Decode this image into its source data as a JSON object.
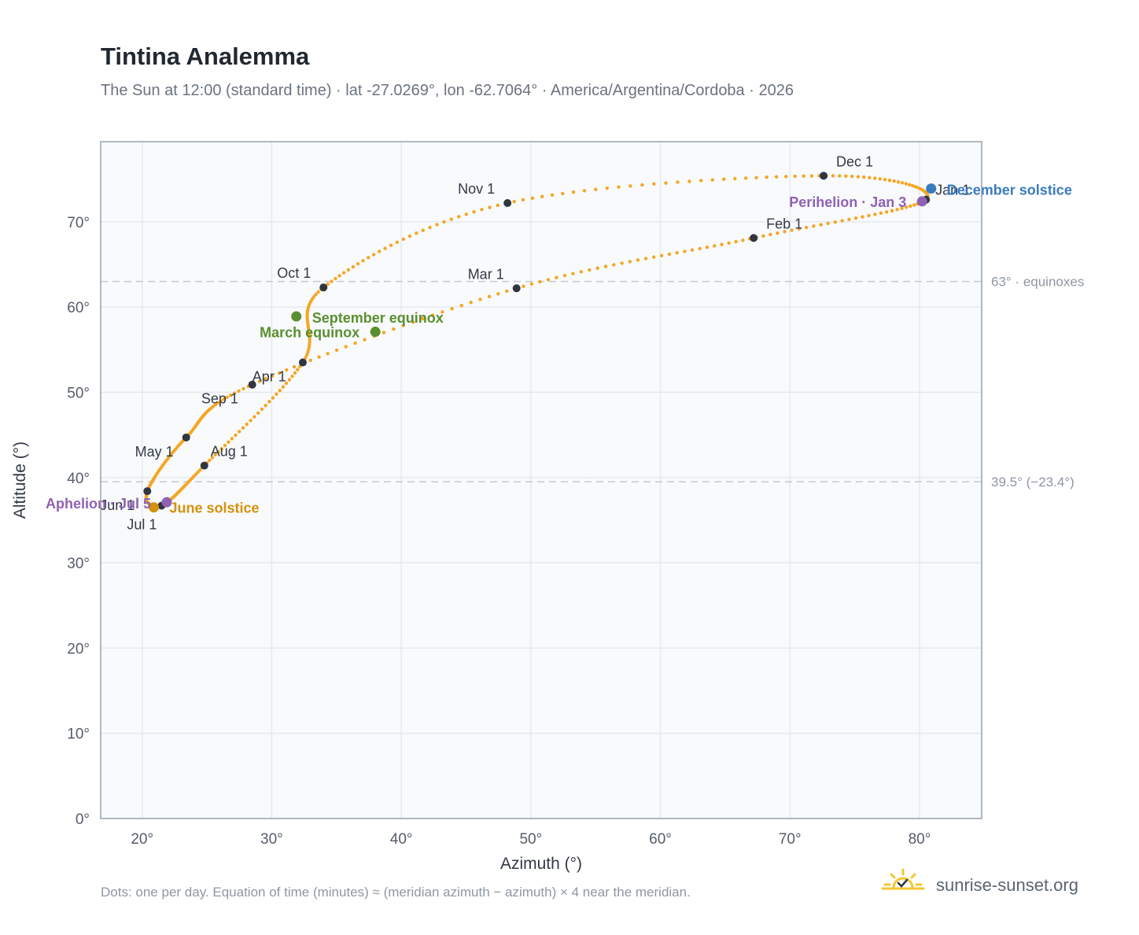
{
  "title": "Tintina Analemma",
  "subtitle": "The Sun at 12:00 (standard time) · lat -27.0269°, lon -62.7064° · America/Argentina/Cordoba · 2026",
  "footnote": "Dots: one per day. Equation of time (minutes) ≈ (meridian azimuth − azimuth) × 4 near the meridian.",
  "brand": {
    "text": "sunrise-sunset.org",
    "icon": "sun-check-icon"
  },
  "colors": {
    "curve": "#f5a623",
    "month_marker": "#2f3640",
    "equinox": "#5a8f2f",
    "june_solstice": "#d4920a",
    "december_solstice": "#3a7bbf",
    "apsis": "#9061b3",
    "plot_bg": "#f8fafc",
    "grid": "#e3e8ee",
    "frame": "#98a2ae"
  },
  "chart_data": {
    "type": "scatter",
    "xlabel": "Azimuth (°)",
    "ylabel": "Altitude (°)",
    "xlim": [
      16.8,
      84.8
    ],
    "ylim": [
      0,
      79.4
    ],
    "x_ticks": [
      20,
      30,
      40,
      50,
      60,
      70,
      80
    ],
    "x_tick_labels": [
      "20°",
      "30°",
      "40°",
      "50°",
      "60°",
      "70°",
      "80°"
    ],
    "y_ticks": [
      0,
      10,
      20,
      30,
      40,
      50,
      60,
      70
    ],
    "y_tick_labels": [
      "0°",
      "10°",
      "20°",
      "30°",
      "40°",
      "50°",
      "60°",
      "70°"
    ],
    "grid": true,
    "reference_lines": [
      {
        "y": 63.0,
        "label": "63° · equinoxes"
      },
      {
        "y": 39.5,
        "label": "39.5° (−23.4°)"
      }
    ],
    "month_markers": [
      {
        "label": "Jan 1",
        "x": 80.5,
        "y": 72.6
      },
      {
        "label": "Feb 1",
        "x": 67.2,
        "y": 68.1
      },
      {
        "label": "Mar 1",
        "x": 48.9,
        "y": 62.2
      },
      {
        "label": "Apr 1",
        "x": 28.5,
        "y": 50.9
      },
      {
        "label": "May 1",
        "x": 23.4,
        "y": 44.7
      },
      {
        "label": "Jun 1",
        "x": 20.4,
        "y": 38.4
      },
      {
        "label": "Jul 1",
        "x": 21.5,
        "y": 36.7
      },
      {
        "label": "Aug 1",
        "x": 24.8,
        "y": 41.4
      },
      {
        "label": "Sep 1",
        "x": 32.4,
        "y": 53.5
      },
      {
        "label": "Oct 1",
        "x": 34.0,
        "y": 62.3
      },
      {
        "label": "Nov 1",
        "x": 48.2,
        "y": 72.2
      },
      {
        "label": "Dec 1",
        "x": 72.6,
        "y": 75.4
      }
    ],
    "events": [
      {
        "label": "March equinox",
        "x": 38.0,
        "y": 57.1,
        "kind": "equinox"
      },
      {
        "label": "June solstice",
        "x": 20.9,
        "y": 36.5,
        "kind": "june_solstice"
      },
      {
        "label": "September equinox",
        "x": 31.9,
        "y": 58.9,
        "kind": "equinox"
      },
      {
        "label": "December solstice",
        "x": 80.9,
        "y": 73.9,
        "kind": "december_solstice"
      },
      {
        "label": "Perihelion · Jan 3",
        "x": 80.2,
        "y": 72.4,
        "kind": "apsis"
      },
      {
        "label": "Aphelion · Jul 5",
        "x": 21.9,
        "y": 37.1,
        "kind": "apsis"
      }
    ]
  }
}
